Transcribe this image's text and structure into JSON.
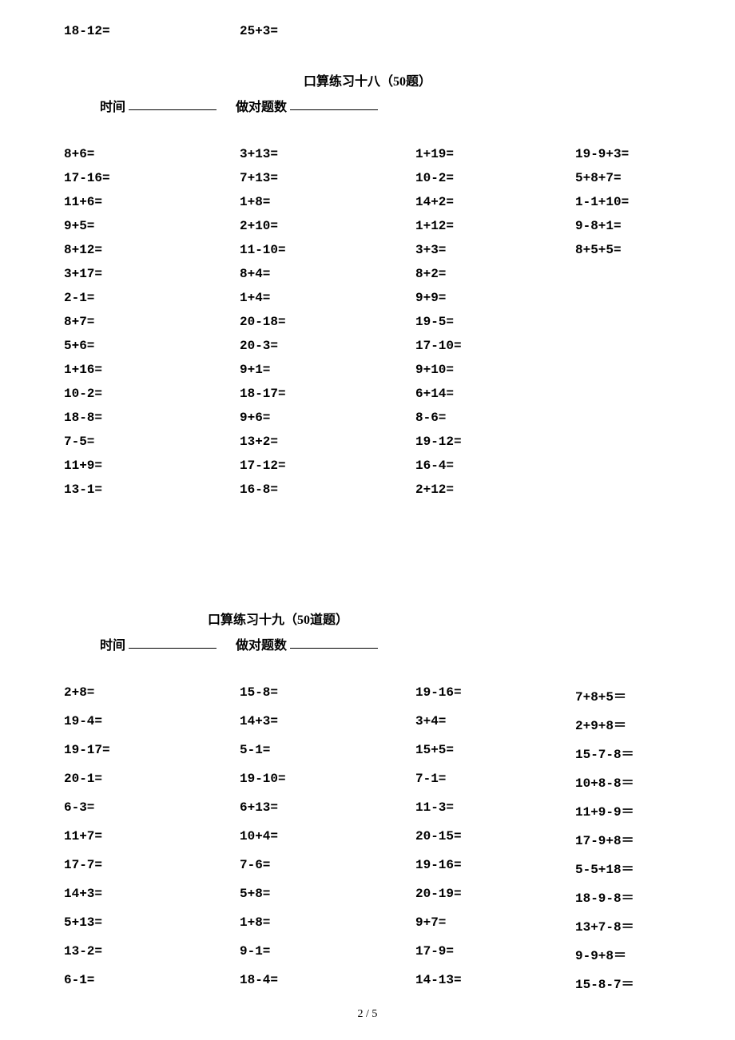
{
  "top_row": {
    "c1": "18-12=",
    "c2": "25+3="
  },
  "section18": {
    "title": "口算练习十八（50题）",
    "time_label": "时间",
    "correct_label": "做对题数",
    "col1": [
      "8+6=",
      "17-16=",
      "11+6=",
      "9+5=",
      "8+12=",
      "3+17=",
      "2-1=",
      "8+7=",
      "5+6=",
      "1+16=",
      "10-2=",
      "18-8=",
      "7-5=",
      "11+9=",
      "13-1="
    ],
    "col2": [
      "3+13=",
      "7+13=",
      "1+8=",
      "2+10=",
      "11-10=",
      "8+4=",
      "1+4=",
      "20-18=",
      "20-3=",
      "9+1=",
      "18-17=",
      "9+6=",
      "13+2=",
      "17-12=",
      "16-8="
    ],
    "col3": [
      "1+19=",
      "10-2=",
      "14+2=",
      "1+12=",
      "3+3=",
      "8+2=",
      "9+9=",
      "19-5=",
      "17-10=",
      "9+10=",
      "6+14=",
      "8-6=",
      "19-12=",
      "16-4=",
      "2+12="
    ],
    "col4": [
      "19-9+3=",
      "5+8+7=",
      "1-1+10=",
      "9-8+1=",
      "8+5+5="
    ]
  },
  "section19": {
    "title": "口算练习十九（50道题）",
    "time_label": "时间",
    "correct_label": "做对题数",
    "col1": [
      "2+8=",
      "19-4=",
      "19-17=",
      "20-1=",
      "6-3=",
      "11+7=",
      "17-7=",
      "14+3=",
      "5+13=",
      "13-2=",
      "6-1="
    ],
    "col2": [
      "15-8=",
      "14+3=",
      "5-1=",
      "19-10=",
      "6+13=",
      "10+4=",
      "7-6=",
      "5+8=",
      "1+8=",
      "9-1=",
      "18-4="
    ],
    "col3": [
      "19-16=",
      "3+4=",
      "15+5=",
      "7-1=",
      "11-3=",
      "20-15=",
      "19-16=",
      "20-19=",
      "9+7=",
      "17-9=",
      "14-13="
    ],
    "col4": [
      "7+8+5＝",
      "2+9+8＝",
      "15-7-8＝",
      "10+8-8＝",
      "11+9-9＝",
      "17-9+8＝",
      "5-5+18＝",
      "18-9-8＝",
      "13+7-8＝",
      "9-9+8＝",
      "15-8-7＝"
    ]
  },
  "page_number": "2 / 5"
}
